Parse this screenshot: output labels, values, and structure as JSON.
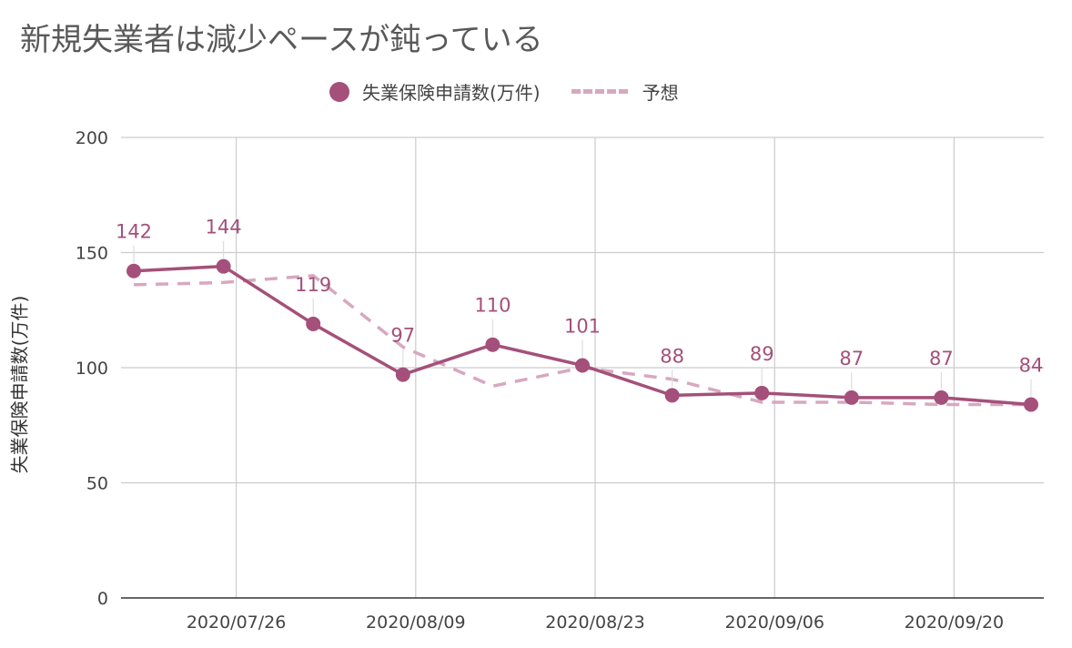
{
  "colors": {
    "actual": "#a4507a",
    "forecast": "#d7a8c0",
    "grid": "#cccccc",
    "axis": "#333333",
    "title": "#595959",
    "tick_text": "#444444"
  },
  "chart_data": {
    "type": "line",
    "title": "新規失業者は減少ペースが鈍っている",
    "ylabel": "失業保険申請数(万件)",
    "xlabel": "",
    "ylim": [
      0,
      200
    ],
    "y_ticks": [
      0,
      50,
      100,
      150,
      200
    ],
    "x_tick_labels": [
      "2020/07/26",
      "2020/08/09",
      "2020/08/23",
      "2020/09/06",
      "2020/09/20"
    ],
    "x": [
      "2020/07/19",
      "2020/07/26",
      "2020/08/02",
      "2020/08/09",
      "2020/08/16",
      "2020/08/23",
      "2020/08/30",
      "2020/09/06",
      "2020/09/13",
      "2020/09/20",
      "2020/09/27"
    ],
    "series": [
      {
        "name": "失業保険申請数(万件)",
        "style": "solid-markers",
        "values": [
          142,
          144,
          119,
          97,
          110,
          101,
          88,
          89,
          87,
          87,
          84
        ],
        "data_labels": [
          "142",
          "144",
          "119",
          "97",
          "110",
          "101",
          "88",
          "89",
          "87",
          "87",
          "84"
        ]
      },
      {
        "name": "予想",
        "style": "dashed",
        "values": [
          136,
          137,
          140,
          109,
          92,
          100,
          95,
          85,
          85,
          84,
          84
        ]
      }
    ],
    "grid": true,
    "legend_position": "top"
  }
}
